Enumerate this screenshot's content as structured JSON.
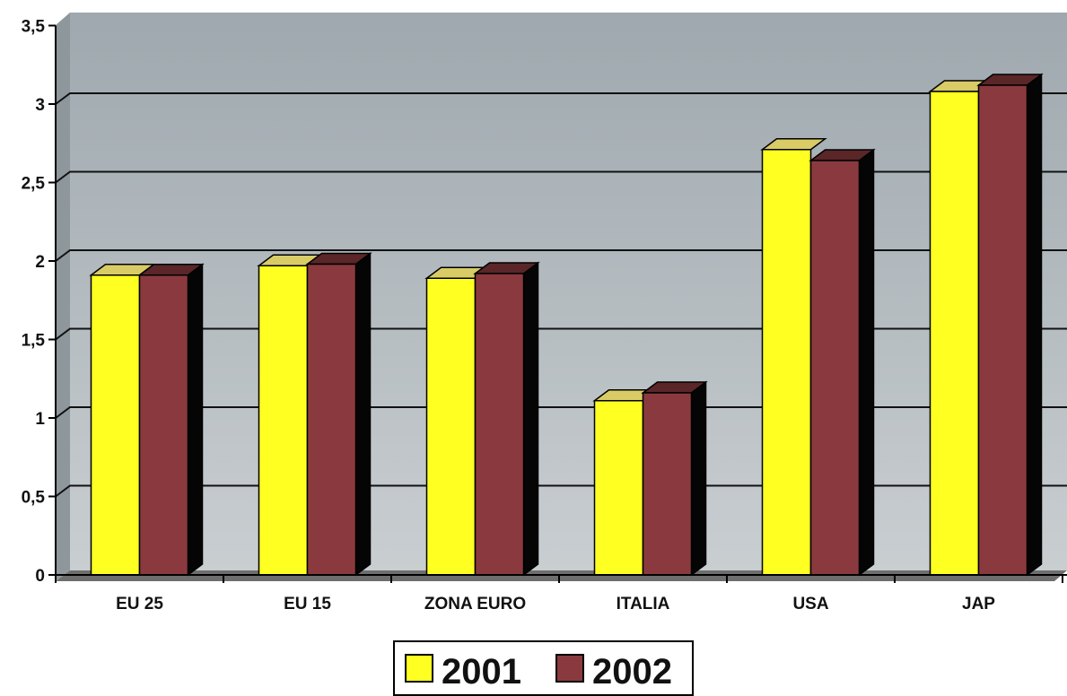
{
  "chart_data": {
    "type": "bar",
    "title": "",
    "xlabel": "",
    "ylabel": "",
    "ylim": [
      0,
      3.5
    ],
    "yticks": [
      "0",
      "0,5",
      "1",
      "1,5",
      "2",
      "2,5",
      "3",
      "3,5"
    ],
    "grid": true,
    "legend_position": "bottom-center",
    "categories": [
      "EU 25",
      "EU 15",
      "ZONA EURO",
      "ITALIA",
      "USA",
      "JAP"
    ],
    "series": [
      {
        "name": "2001",
        "values": [
          1.91,
          1.97,
          1.89,
          1.11,
          2.71,
          3.08
        ],
        "color": "#ffff22"
      },
      {
        "name": "2002",
        "values": [
          1.91,
          1.98,
          1.92,
          1.16,
          2.64,
          3.12
        ],
        "color": "#8a3a3e"
      }
    ]
  }
}
